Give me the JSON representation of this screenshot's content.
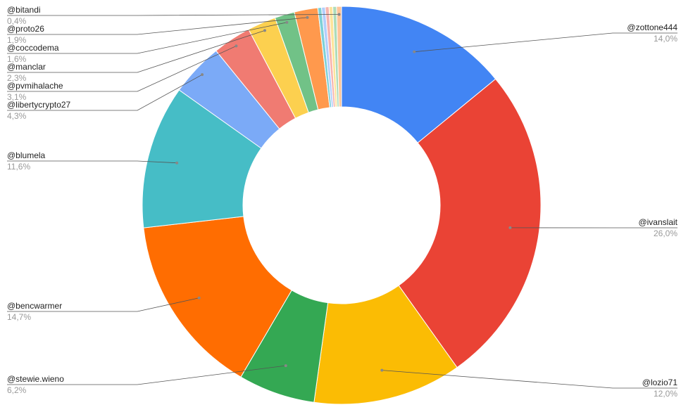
{
  "chart_data": {
    "type": "donut",
    "categories": [
      "@zottone444",
      "@ivanslait",
      "@lozio71",
      "@stewie.wieno",
      "@bencwarmer",
      "@blumela",
      "@libertycrypto27",
      "@pvmihalache",
      "@manclar",
      "@coccodema",
      "@proto26",
      null,
      null,
      null,
      null,
      null,
      "@bitandi"
    ],
    "values": [
      14.0,
      26.0,
      12.0,
      6.2,
      14.7,
      11.6,
      4.3,
      3.1,
      2.3,
      1.6,
      1.9,
      0.3,
      0.3,
      0.3,
      0.3,
      0.3,
      0.4
    ],
    "value_labels": [
      "14,0%",
      "26,0%",
      "12,0%",
      "6,2%",
      "14,7%",
      "11,6%",
      "4,3%",
      "3,1%",
      "2,3%",
      "1,6%",
      "1,9%",
      null,
      null,
      null,
      null,
      null,
      "0,4%"
    ],
    "colors": [
      "#4285f4",
      "#ea4335",
      "#fbbc04",
      "#34a853",
      "#ff6d01",
      "#46bdc6",
      "#7baaf7",
      "#f07b72",
      "#fcd04f",
      "#71c287",
      "#ff994d",
      "#7ed1d7",
      "#b3cefb",
      "#f7b4ae",
      "#fde49b",
      "#aedcba",
      "#ffc599"
    ]
  }
}
